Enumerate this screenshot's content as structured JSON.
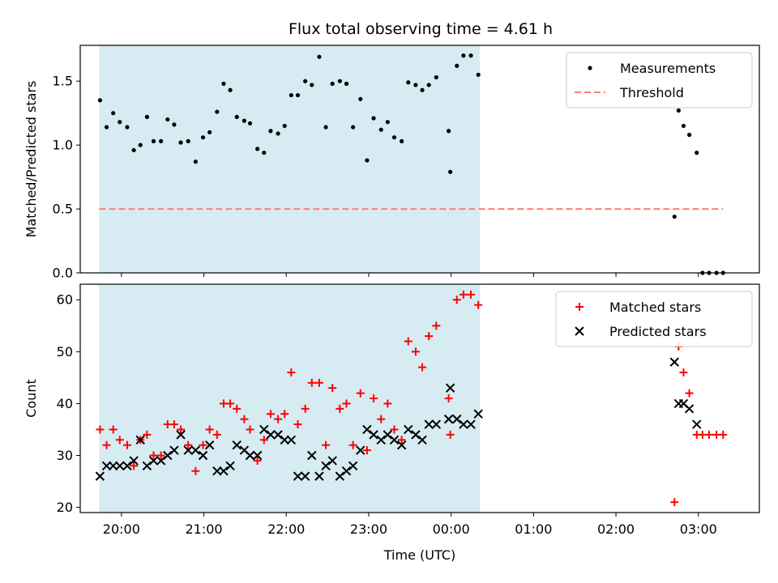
{
  "chart_data": {
    "title": "Flux total observing time = 4.61 h",
    "xlabel": "Time (UTC)",
    "x_unit": "hours since 20:00 UTC",
    "x_ticks": [
      {
        "value": 0,
        "label": "20:00"
      },
      {
        "value": 1,
        "label": "21:00"
      },
      {
        "value": 2,
        "label": "22:00"
      },
      {
        "value": 3,
        "label": "23:00"
      },
      {
        "value": 4,
        "label": "00:00"
      },
      {
        "value": 5,
        "label": "01:00"
      },
      {
        "value": 6,
        "label": "02:00"
      },
      {
        "value": 7,
        "label": "03:00"
      }
    ],
    "shaded_interval": {
      "start": -0.27,
      "end": 4.35,
      "color": "#add8e6"
    },
    "colors": {
      "measurements": "#000000",
      "threshold": "#ff7f7f",
      "matched": "#ff0000",
      "predicted": "#000000"
    },
    "panels": [
      {
        "type": "scatter",
        "ylabel": "Matched/Predicted stars",
        "ylim": [
          0,
          1.78
        ],
        "y_ticks": [
          "0.0",
          "0.5",
          "1.0",
          "1.5"
        ],
        "legend": {
          "position": "upper right",
          "entries": [
            "Measurements",
            "Threshold"
          ]
        },
        "threshold": 0.5,
        "threshold_x_range": [
          -0.27,
          7.3
        ],
        "series": [
          {
            "name": "Measurements",
            "marker": "dot",
            "points": [
              [
                -0.26,
                1.35
              ],
              [
                -0.18,
                1.14
              ],
              [
                -0.1,
                1.25
              ],
              [
                -0.02,
                1.18
              ],
              [
                0.07,
                1.14
              ],
              [
                0.15,
                0.96
              ],
              [
                0.23,
                1.0
              ],
              [
                0.31,
                1.22
              ],
              [
                0.39,
                1.03
              ],
              [
                0.48,
                1.03
              ],
              [
                0.56,
                1.2
              ],
              [
                0.64,
                1.16
              ],
              [
                0.72,
                1.02
              ],
              [
                0.81,
                1.03
              ],
              [
                0.9,
                0.87
              ],
              [
                0.99,
                1.06
              ],
              [
                1.07,
                1.1
              ],
              [
                1.16,
                1.26
              ],
              [
                1.24,
                1.48
              ],
              [
                1.32,
                1.43
              ],
              [
                1.4,
                1.22
              ],
              [
                1.49,
                1.19
              ],
              [
                1.56,
                1.17
              ],
              [
                1.65,
                0.97
              ],
              [
                1.73,
                0.94
              ],
              [
                1.81,
                1.11
              ],
              [
                1.9,
                1.09
              ],
              [
                1.98,
                1.15
              ],
              [
                2.06,
                1.39
              ],
              [
                2.14,
                1.39
              ],
              [
                2.23,
                1.5
              ],
              [
                2.31,
                1.47
              ],
              [
                2.4,
                1.69
              ],
              [
                2.48,
                1.14
              ],
              [
                2.56,
                1.48
              ],
              [
                2.65,
                1.5
              ],
              [
                2.73,
                1.48
              ],
              [
                2.81,
                1.14
              ],
              [
                2.9,
                1.36
              ],
              [
                2.98,
                0.88
              ],
              [
                3.06,
                1.21
              ],
              [
                3.15,
                1.12
              ],
              [
                3.23,
                1.18
              ],
              [
                3.31,
                1.06
              ],
              [
                3.4,
                1.03
              ],
              [
                3.48,
                1.49
              ],
              [
                3.57,
                1.47
              ],
              [
                3.65,
                1.43
              ],
              [
                3.73,
                1.47
              ],
              [
                3.82,
                1.53
              ],
              [
                3.97,
                1.11
              ],
              [
                3.99,
                0.79
              ],
              [
                4.07,
                1.62
              ],
              [
                4.15,
                1.7
              ],
              [
                4.24,
                1.7
              ],
              [
                4.33,
                1.55
              ],
              [
                6.71,
                0.44
              ],
              [
                6.76,
                1.27
              ],
              [
                6.82,
                1.15
              ],
              [
                6.89,
                1.08
              ],
              [
                6.98,
                0.94
              ],
              [
                7.05,
                0.0
              ],
              [
                7.13,
                0.0
              ],
              [
                7.22,
                0.0
              ],
              [
                7.3,
                0.0
              ]
            ]
          }
        ]
      },
      {
        "type": "scatter",
        "ylabel": "Count",
        "ylim": [
          19,
          63
        ],
        "y_ticks": [
          "20",
          "30",
          "40",
          "50",
          "60"
        ],
        "legend": {
          "position": "upper right",
          "entries": [
            "Matched stars",
            "Predicted stars"
          ]
        },
        "series": [
          {
            "name": "Matched stars",
            "marker": "plus",
            "points": [
              [
                -0.26,
                35
              ],
              [
                -0.18,
                32
              ],
              [
                -0.1,
                35
              ],
              [
                -0.02,
                33
              ],
              [
                0.07,
                32
              ],
              [
                0.15,
                28
              ],
              [
                0.23,
                33
              ],
              [
                0.31,
                34
              ],
              [
                0.39,
                30
              ],
              [
                0.48,
                30
              ],
              [
                0.56,
                36
              ],
              [
                0.64,
                36
              ],
              [
                0.72,
                35
              ],
              [
                0.81,
                32
              ],
              [
                0.9,
                27
              ],
              [
                0.99,
                32
              ],
              [
                1.07,
                35
              ],
              [
                1.16,
                34
              ],
              [
                1.24,
                40
              ],
              [
                1.32,
                40
              ],
              [
                1.4,
                39
              ],
              [
                1.49,
                37
              ],
              [
                1.56,
                35
              ],
              [
                1.65,
                29
              ],
              [
                1.73,
                33
              ],
              [
                1.81,
                38
              ],
              [
                1.9,
                37
              ],
              [
                1.98,
                38
              ],
              [
                2.06,
                46
              ],
              [
                2.14,
                36
              ],
              [
                2.23,
                39
              ],
              [
                2.31,
                44
              ],
              [
                2.4,
                44
              ],
              [
                2.48,
                32
              ],
              [
                2.56,
                43
              ],
              [
                2.65,
                39
              ],
              [
                2.73,
                40
              ],
              [
                2.81,
                32
              ],
              [
                2.9,
                42
              ],
              [
                2.98,
                31
              ],
              [
                3.06,
                41
              ],
              [
                3.15,
                37
              ],
              [
                3.23,
                40
              ],
              [
                3.31,
                35
              ],
              [
                3.4,
                33
              ],
              [
                3.48,
                52
              ],
              [
                3.57,
                50
              ],
              [
                3.65,
                47
              ],
              [
                3.73,
                53
              ],
              [
                3.82,
                55
              ],
              [
                3.97,
                41
              ],
              [
                3.99,
                34
              ],
              [
                4.07,
                60
              ],
              [
                4.15,
                61
              ],
              [
                4.24,
                61
              ],
              [
                4.33,
                59
              ],
              [
                6.71,
                21
              ],
              [
                6.76,
                51
              ],
              [
                6.82,
                46
              ],
              [
                6.89,
                42
              ],
              [
                6.98,
                34
              ],
              [
                7.05,
                34
              ],
              [
                7.13,
                34
              ],
              [
                7.22,
                34
              ],
              [
                7.3,
                34
              ]
            ]
          },
          {
            "name": "Predicted stars",
            "marker": "x",
            "points": [
              [
                -0.26,
                26
              ],
              [
                -0.18,
                28
              ],
              [
                -0.1,
                28
              ],
              [
                -0.02,
                28
              ],
              [
                0.07,
                28
              ],
              [
                0.15,
                29
              ],
              [
                0.23,
                33
              ],
              [
                0.31,
                28
              ],
              [
                0.39,
                29
              ],
              [
                0.48,
                29
              ],
              [
                0.56,
                30
              ],
              [
                0.64,
                31
              ],
              [
                0.72,
                34
              ],
              [
                0.81,
                31
              ],
              [
                0.9,
                31
              ],
              [
                0.99,
                30
              ],
              [
                1.07,
                32
              ],
              [
                1.16,
                27
              ],
              [
                1.24,
                27
              ],
              [
                1.32,
                28
              ],
              [
                1.4,
                32
              ],
              [
                1.49,
                31
              ],
              [
                1.56,
                30
              ],
              [
                1.65,
                30
              ],
              [
                1.73,
                35
              ],
              [
                1.81,
                34
              ],
              [
                1.9,
                34
              ],
              [
                1.98,
                33
              ],
              [
                2.06,
                33
              ],
              [
                2.14,
                26
              ],
              [
                2.23,
                26
              ],
              [
                2.31,
                30
              ],
              [
                2.4,
                26
              ],
              [
                2.48,
                28
              ],
              [
                2.56,
                29
              ],
              [
                2.65,
                26
              ],
              [
                2.73,
                27
              ],
              [
                2.81,
                28
              ],
              [
                2.9,
                31
              ],
              [
                2.98,
                35
              ],
              [
                3.06,
                34
              ],
              [
                3.15,
                33
              ],
              [
                3.23,
                34
              ],
              [
                3.31,
                33
              ],
              [
                3.4,
                32
              ],
              [
                3.48,
                35
              ],
              [
                3.57,
                34
              ],
              [
                3.65,
                33
              ],
              [
                3.73,
                36
              ],
              [
                3.82,
                36
              ],
              [
                3.97,
                37
              ],
              [
                3.99,
                43
              ],
              [
                4.07,
                37
              ],
              [
                4.15,
                36
              ],
              [
                4.24,
                36
              ],
              [
                4.33,
                38
              ],
              [
                6.71,
                48
              ],
              [
                6.76,
                40
              ],
              [
                6.82,
                40
              ],
              [
                6.89,
                39
              ],
              [
                6.98,
                36
              ]
            ]
          }
        ]
      }
    ]
  }
}
